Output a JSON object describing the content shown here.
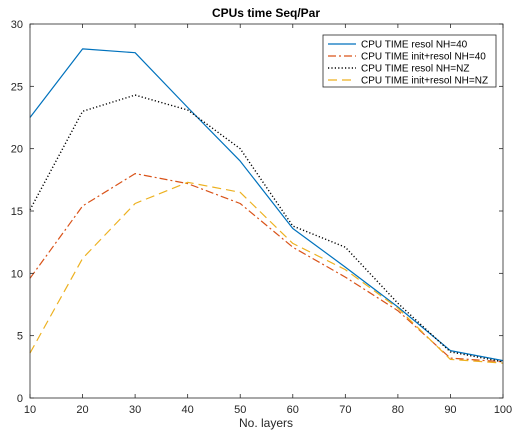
{
  "chart_data": {
    "type": "line",
    "title": "CPUs time Seq/Par",
    "xlabel": "No. layers",
    "ylabel": "",
    "xlim": [
      10,
      100
    ],
    "ylim": [
      0,
      30
    ],
    "xticks": [
      10,
      20,
      30,
      40,
      50,
      60,
      70,
      80,
      90,
      100
    ],
    "yticks": [
      0,
      5,
      10,
      15,
      20,
      25,
      30
    ],
    "grid": false,
    "legend_position": "top-right",
    "x": [
      10,
      20,
      30,
      40,
      50,
      60,
      70,
      80,
      90,
      100
    ],
    "series": [
      {
        "name": "CPU TIME resol NH=40",
        "color": "#0072BD",
        "dash": "solid",
        "values": [
          22.5,
          28.0,
          27.7,
          23.3,
          19.0,
          13.6,
          10.5,
          7.3,
          3.8,
          3.0
        ]
      },
      {
        "name": "CPU TIME init+resol NH=40",
        "color": "#D95319",
        "dash": "dashdot",
        "values": [
          9.6,
          15.4,
          18.0,
          17.2,
          15.6,
          12.1,
          9.7,
          7.0,
          3.2,
          2.9
        ]
      },
      {
        "name": "CPU TIME resol NH=NZ",
        "color": "#000000",
        "dash": "dotted",
        "values": [
          15.1,
          23.0,
          24.3,
          23.1,
          20.0,
          13.8,
          12.1,
          7.6,
          3.7,
          2.9
        ]
      },
      {
        "name": "CPU TIME init+resol NH=NZ",
        "color": "#EDB120",
        "dash": "dashed",
        "values": [
          3.6,
          11.2,
          15.6,
          17.3,
          16.5,
          12.4,
          10.3,
          7.2,
          3.1,
          2.8
        ]
      }
    ]
  }
}
